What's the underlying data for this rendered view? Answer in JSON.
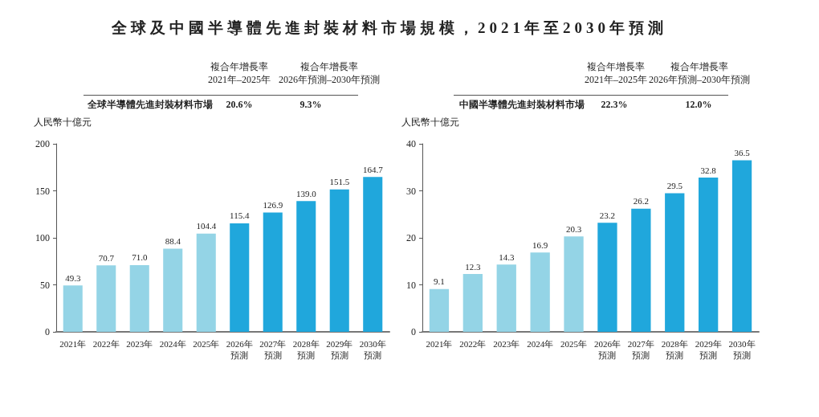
{
  "chart_data": [
    {
      "type": "bar",
      "title": "全球及中國半導體先進封裝材料市場規模，2021年至2030年預測",
      "ylabel": "人民幣十億元",
      "categories": [
        "2021年",
        "2022年",
        "2023年",
        "2024年",
        "2025年",
        "2026年預測",
        "2027年預測",
        "2028年預測",
        "2029年預測",
        "2030年預測"
      ],
      "values": [
        49.3,
        70.7,
        71.0,
        88.4,
        104.4,
        115.4,
        126.9,
        139.0,
        151.5,
        164.7
      ],
      "value_labels": [
        "49.3",
        "70.7",
        "71.0",
        "88.4",
        "104.4",
        "115.4",
        "126.9",
        "139.0",
        "151.5",
        "164.7"
      ],
      "colors": [
        "#94d4e6",
        "#94d4e6",
        "#94d4e6",
        "#94d4e6",
        "#94d4e6",
        "#20a7dc",
        "#20a7dc",
        "#20a7dc",
        "#20a7dc",
        "#20a7dc"
      ],
      "ylim": [
        0,
        200
      ],
      "yticks": [
        0,
        50,
        100,
        150,
        200
      ],
      "annotations": [
        "複合年增長率\n2021年–2025年",
        "複合年增長率\n2026年預測–2030年預測",
        "全球半導體先進封裝材料市場",
        "20.6%",
        "9.3%"
      ]
    },
    {
      "type": "bar",
      "ylabel": "人民幣十億元",
      "categories": [
        "2021年",
        "2022年",
        "2023年",
        "2024年",
        "2025年",
        "2026年預測",
        "2027年預測",
        "2028年預測",
        "2029年預測",
        "2030年預測"
      ],
      "values": [
        9.1,
        12.3,
        14.3,
        16.9,
        20.3,
        23.2,
        26.2,
        29.5,
        32.8,
        36.5
      ],
      "data_labels": true,
      "colors": [
        "#94d4e6",
        "#94d4e6",
        "#94d4e6",
        "#94d4e6",
        "#94d4e6",
        "#20a7dc",
        "#20a7dc",
        "#20a7dc",
        "#20a7dc",
        "#20a7dc"
      ],
      "ylim": [
        0,
        40
      ],
      "yticks": [
        0,
        10,
        20,
        30,
        40
      ],
      "annotations": [
        "複合年增長率\n2021年–2025年",
        "複合年增長率\n2026年預測–2030年預測",
        "中國半導體先進封裝材料市場",
        "22.3%",
        "12.0%"
      ]
    }
  ]
}
